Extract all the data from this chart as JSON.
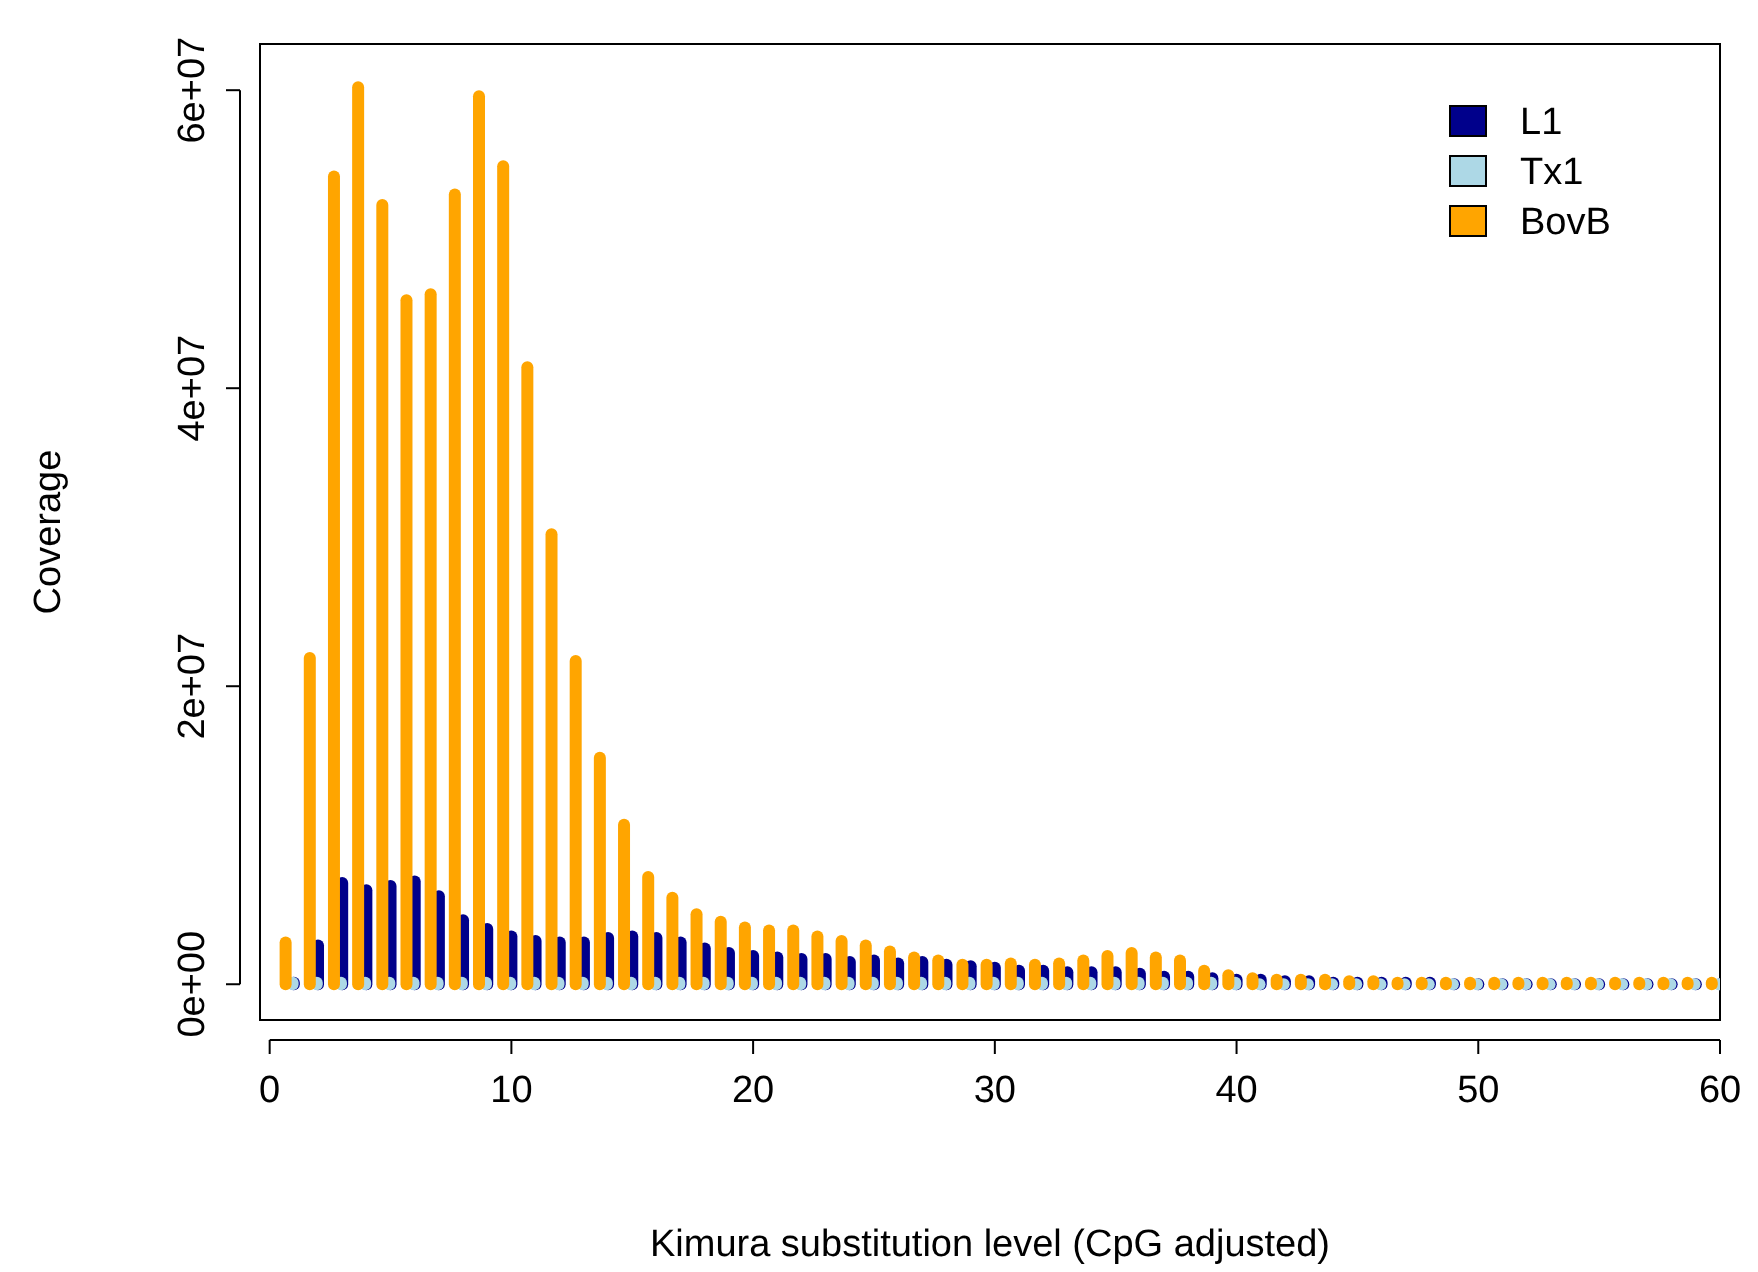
{
  "chart_data": {
    "type": "bar",
    "xlabel": "Kimura substitution level (CpG adjusted)",
    "ylabel": "Coverage",
    "legend": "top right",
    "xlim": [
      -0.4,
      60
    ],
    "xticks": [
      0,
      10,
      20,
      30,
      40,
      50,
      60
    ],
    "ylim": [
      -2400000,
      63100000
    ],
    "yticks": [
      {
        "value": 0,
        "label": "0e+00"
      },
      {
        "value": 20000000,
        "label": "2e+07"
      },
      {
        "value": 40000000,
        "label": "4e+07"
      },
      {
        "value": 60000000,
        "label": "6e+07"
      }
    ],
    "series": [
      {
        "name": "L1",
        "color": "#00008b",
        "x": [
          1,
          2,
          3,
          4,
          5,
          6,
          7,
          8,
          9,
          10,
          11,
          12,
          13,
          14,
          15,
          16,
          17,
          18,
          19,
          20,
          21,
          22,
          23,
          24,
          25,
          26,
          27,
          28,
          29,
          30,
          31,
          32,
          33,
          34,
          35,
          36,
          37,
          38,
          39,
          40,
          41,
          42,
          43,
          44,
          45,
          46,
          47,
          48,
          49,
          50,
          51,
          52,
          53,
          54,
          55,
          56,
          57,
          58,
          59,
          60
        ],
        "values": [
          100000.0,
          2600000.0,
          6800000.0,
          6300000.0,
          6600000.0,
          6900000.0,
          5900000.0,
          4300000.0,
          3700000.0,
          3200000.0,
          2900000.0,
          2800000.0,
          2800000.0,
          3100000.0,
          3200000.0,
          3100000.0,
          2800000.0,
          2400000.0,
          2100000.0,
          1900000.0,
          1800000.0,
          1700000.0,
          1700000.0,
          1500000.0,
          1600000.0,
          1400000.0,
          1500000.0,
          1300000.0,
          1200000.0,
          1100000.0,
          900000.0,
          900000.0,
          800000.0,
          800000.0,
          800000.0,
          700000.0,
          500000.0,
          500000.0,
          400000.0,
          300000.0,
          300000.0,
          200000.0,
          200000.0,
          100000.0,
          100000.0,
          100000.0,
          100000.0,
          100000.0,
          0,
          0,
          0,
          0,
          0,
          0,
          0,
          0,
          0,
          0,
          0,
          0
        ]
      },
      {
        "name": "Tx1",
        "color": "#add8e6",
        "x": [
          0.95,
          1.95,
          2.95,
          3.95,
          4.95,
          5.95,
          6.95,
          7.95,
          8.95,
          9.95,
          10.95,
          11.95,
          12.95,
          13.95,
          14.95,
          15.95,
          16.95,
          17.95,
          18.95,
          19.95,
          20.95,
          21.95,
          22.95,
          23.95,
          24.95,
          25.95,
          26.95,
          27.95,
          28.95,
          29.95,
          30.95,
          31.95,
          32.95,
          33.95,
          34.95,
          35.95,
          36.95,
          37.95,
          38.95,
          39.95,
          40.95,
          41.95,
          42.95,
          43.95,
          44.95,
          45.95,
          46.95,
          47.95,
          48.95,
          49.95,
          50.95,
          51.95,
          52.95,
          53.95,
          54.95,
          55.95,
          56.95,
          57.95,
          58.95,
          59.95
        ],
        "values": [
          100000.0,
          100000.0,
          100000.0,
          100000.0,
          100000.0,
          100000.0,
          100000.0,
          100000.0,
          100000.0,
          100000.0,
          100000.0,
          100000.0,
          100000.0,
          100000.0,
          100000.0,
          100000.0,
          100000.0,
          100000.0,
          100000.0,
          100000.0,
          100000.0,
          100000.0,
          100000.0,
          100000.0,
          100000.0,
          100000.0,
          100000.0,
          100000.0,
          100000.0,
          100000.0,
          100000.0,
          100000.0,
          100000.0,
          100000.0,
          100000.0,
          100000.0,
          100000.0,
          100000.0,
          100000.0,
          100000.0,
          0,
          0,
          0,
          0,
          0,
          0,
          0,
          0,
          0,
          0,
          0,
          0,
          0,
          0,
          0,
          0,
          0,
          0,
          0,
          0
        ]
      },
      {
        "name": "BovB",
        "color": "#ffa500",
        "x": [
          0.66,
          1.66,
          2.66,
          3.66,
          4.66,
          5.66,
          6.66,
          7.66,
          8.66,
          9.66,
          10.66,
          11.66,
          12.66,
          13.66,
          14.66,
          15.66,
          16.66,
          17.66,
          18.66,
          19.66,
          20.66,
          21.66,
          22.66,
          23.66,
          24.66,
          25.66,
          26.66,
          27.66,
          28.66,
          29.66,
          30.66,
          31.66,
          32.66,
          33.66,
          34.66,
          35.66,
          36.66,
          37.66,
          38.66,
          39.66,
          40.66,
          41.66,
          42.66,
          43.66,
          44.66,
          45.66,
          46.66,
          47.66,
          48.66,
          49.66,
          50.66,
          51.66,
          52.66,
          53.66,
          54.66,
          55.66,
          56.66,
          57.66,
          58.66,
          59.66
        ],
        "values": [
          2800000.0,
          21900000.0,
          54200000.0,
          60200000.0,
          52300000.0,
          45900000.0,
          46300000.0,
          53000000.0,
          59600000.0,
          54900000.0,
          41400000.0,
          30200000.0,
          21700000.0,
          15200000.0,
          10700000.0,
          7200000.0,
          5800000.0,
          4700000.0,
          4200000.0,
          3800000.0,
          3600000.0,
          3600000.0,
          3200000.0,
          2900000.0,
          2600000.0,
          2200000.0,
          1800000.0,
          1600000.0,
          1300000.0,
          1300000.0,
          1400000.0,
          1300000.0,
          1400000.0,
          1600000.0,
          1900000.0,
          2100000.0,
          1800000.0,
          1600000.0,
          900000.0,
          600000.0,
          400000.0,
          300000.0,
          300000.0,
          300000.0,
          200000.0,
          200000.0,
          100000.0,
          100000.0,
          100000.0,
          100000.0,
          100000.0,
          100000.0,
          100000.0,
          100000.0,
          100000.0,
          100000.0,
          100000.0,
          100000.0,
          100000.0,
          100000.0
        ]
      }
    ]
  }
}
